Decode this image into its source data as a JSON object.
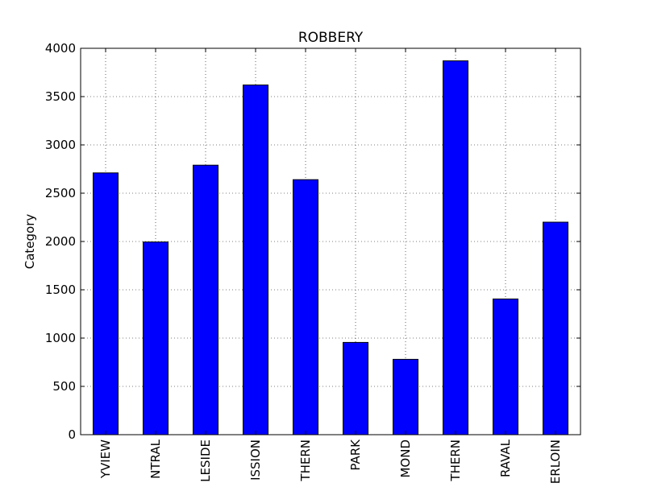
{
  "chart_data": {
    "type": "bar",
    "title": "ROBBERY",
    "xlabel": "",
    "ylabel": "Category",
    "categories": [
      "YVIEW",
      "NTRAL",
      "LESIDE",
      "ISSION",
      "THERN",
      "PARK",
      "MOND",
      "THERN",
      "RAVAL",
      "ERLOIN"
    ],
    "values": [
      2710,
      1995,
      2790,
      3620,
      2640,
      955,
      780,
      3870,
      1405,
      2200
    ],
    "ylim": [
      0,
      4000
    ],
    "yticks": [
      0,
      500,
      1000,
      1500,
      2000,
      2500,
      3000,
      3500,
      4000
    ],
    "grid": true,
    "legend": "none",
    "bar_color": "#0000ff",
    "edge_color": "#000000"
  }
}
